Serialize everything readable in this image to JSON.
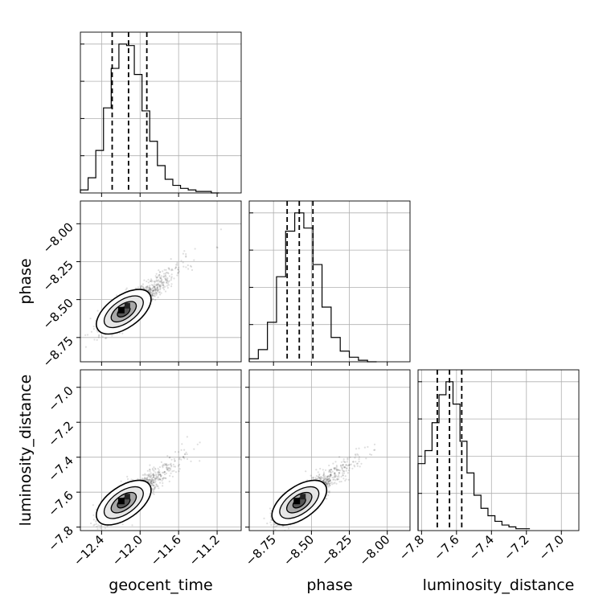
{
  "chart_data": {
    "type": "corner",
    "grid": true,
    "parameters": [
      "geocent_time",
      "phase",
      "luminosity_distance"
    ],
    "axes": {
      "geocent_time": {
        "lim": [
          -12.62,
          -10.95
        ],
        "ticks": [
          -12.4,
          -12.0,
          -11.6,
          -11.2
        ],
        "tick_labels": [
          "−12.4",
          "−12.0",
          "−11.6",
          "−11.2"
        ]
      },
      "phase": {
        "lim": [
          -8.91,
          -7.85
        ],
        "ticks": [
          -8.75,
          -8.5,
          -8.25,
          -8.0
        ],
        "tick_labels": [
          "−8.75",
          "−8.50",
          "−8.25",
          "−8.00"
        ]
      },
      "luminosity_distance": {
        "lim": [
          -7.82,
          -6.9
        ],
        "ticks": [
          -7.8,
          -7.6,
          -7.4,
          -7.2,
          -7.0
        ],
        "tick_labels": [
          "−7.8",
          "−7.6",
          "−7.4",
          "−7.2",
          "−7.0"
        ]
      }
    },
    "x_axis_labels": [
      "geocent_time",
      "phase",
      "luminosity_distance"
    ],
    "y_axis_labels": [
      "phase",
      "luminosity_distance"
    ],
    "histograms": [
      {
        "parameter": "geocent_time",
        "bin_edges": [
          -12.62,
          -12.54,
          -12.46,
          -12.38,
          -12.3,
          -12.22,
          -12.14,
          -12.06,
          -11.98,
          -11.9,
          -11.82,
          -11.74,
          -11.66,
          -11.58,
          -11.5,
          -11.42,
          -11.34,
          -11.26,
          -11.18
        ],
        "counts": [
          2,
          10,
          28,
          56,
          82,
          98,
          97,
          78,
          54,
          34,
          18,
          9,
          5,
          3,
          2,
          1,
          1,
          0
        ],
        "quantiles": [
          -12.29,
          -12.12,
          -11.93
        ]
      },
      {
        "parameter": "phase",
        "bin_edges": [
          -8.91,
          -8.85,
          -8.79,
          -8.73,
          -8.67,
          -8.61,
          -8.55,
          -8.49,
          -8.43,
          -8.37,
          -8.31,
          -8.25,
          -8.19,
          -8.13,
          -8.07
        ],
        "counts": [
          2,
          8,
          26,
          56,
          86,
          98,
          88,
          64,
          36,
          16,
          7,
          3,
          1,
          0
        ],
        "quantiles": [
          -8.66,
          -8.58,
          -8.49
        ]
      },
      {
        "parameter": "luminosity_distance",
        "bin_edges": [
          -7.82,
          -7.78,
          -7.74,
          -7.7,
          -7.66,
          -7.62,
          -7.58,
          -7.54,
          -7.5,
          -7.46,
          -7.42,
          -7.38,
          -7.34,
          -7.3,
          -7.26,
          -7.22,
          -7.18
        ],
        "counts": [
          36,
          43,
          58,
          73,
          80,
          68,
          48,
          31,
          19,
          12,
          8,
          5,
          3,
          2,
          1,
          1
        ],
        "quantiles": [
          -7.71,
          -7.64,
          -7.57
        ]
      }
    ],
    "contours": [
      {
        "x": "geocent_time",
        "y": "phase",
        "center": [
          -12.17,
          -8.58
        ],
        "points": 3200
      },
      {
        "x": "geocent_time",
        "y": "luminosity_distance",
        "center": [
          -12.17,
          -7.66
        ],
        "points": 3200
      },
      {
        "x": "phase",
        "y": "luminosity_distance",
        "center": [
          -8.58,
          -7.66
        ],
        "points": 3200
      }
    ]
  }
}
